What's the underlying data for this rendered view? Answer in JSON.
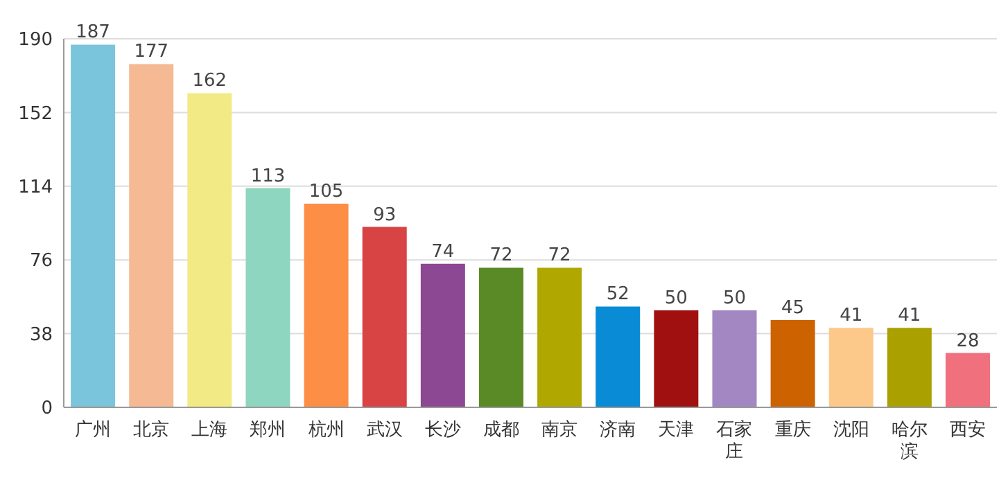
{
  "chart_data": {
    "type": "bar",
    "categories": [
      "广州",
      "北京",
      "上海",
      "郑州",
      "杭州",
      "武汉",
      "长沙",
      "成都",
      "南京",
      "济南",
      "天津",
      "石家庄",
      "重庆",
      "沈阳",
      "哈尔滨",
      "西安"
    ],
    "values": [
      187,
      177,
      162,
      113,
      105,
      93,
      74,
      72,
      72,
      52,
      50,
      50,
      45,
      41,
      41,
      28
    ],
    "colors": [
      "#7ac5dc",
      "#f5b994",
      "#f2ea85",
      "#8fd6c0",
      "#fd8e46",
      "#d84344",
      "#8c4892",
      "#5a8a25",
      "#b0a800",
      "#0a8bd6",
      "#a01010",
      "#a287c2",
      "#cd6200",
      "#fcc98a",
      "#aaa000",
      "#f0707e"
    ],
    "ylim": [
      0,
      190
    ],
    "yticks": [
      0,
      38,
      76,
      114,
      152,
      190
    ],
    "grid": "y",
    "data_labels": true
  }
}
